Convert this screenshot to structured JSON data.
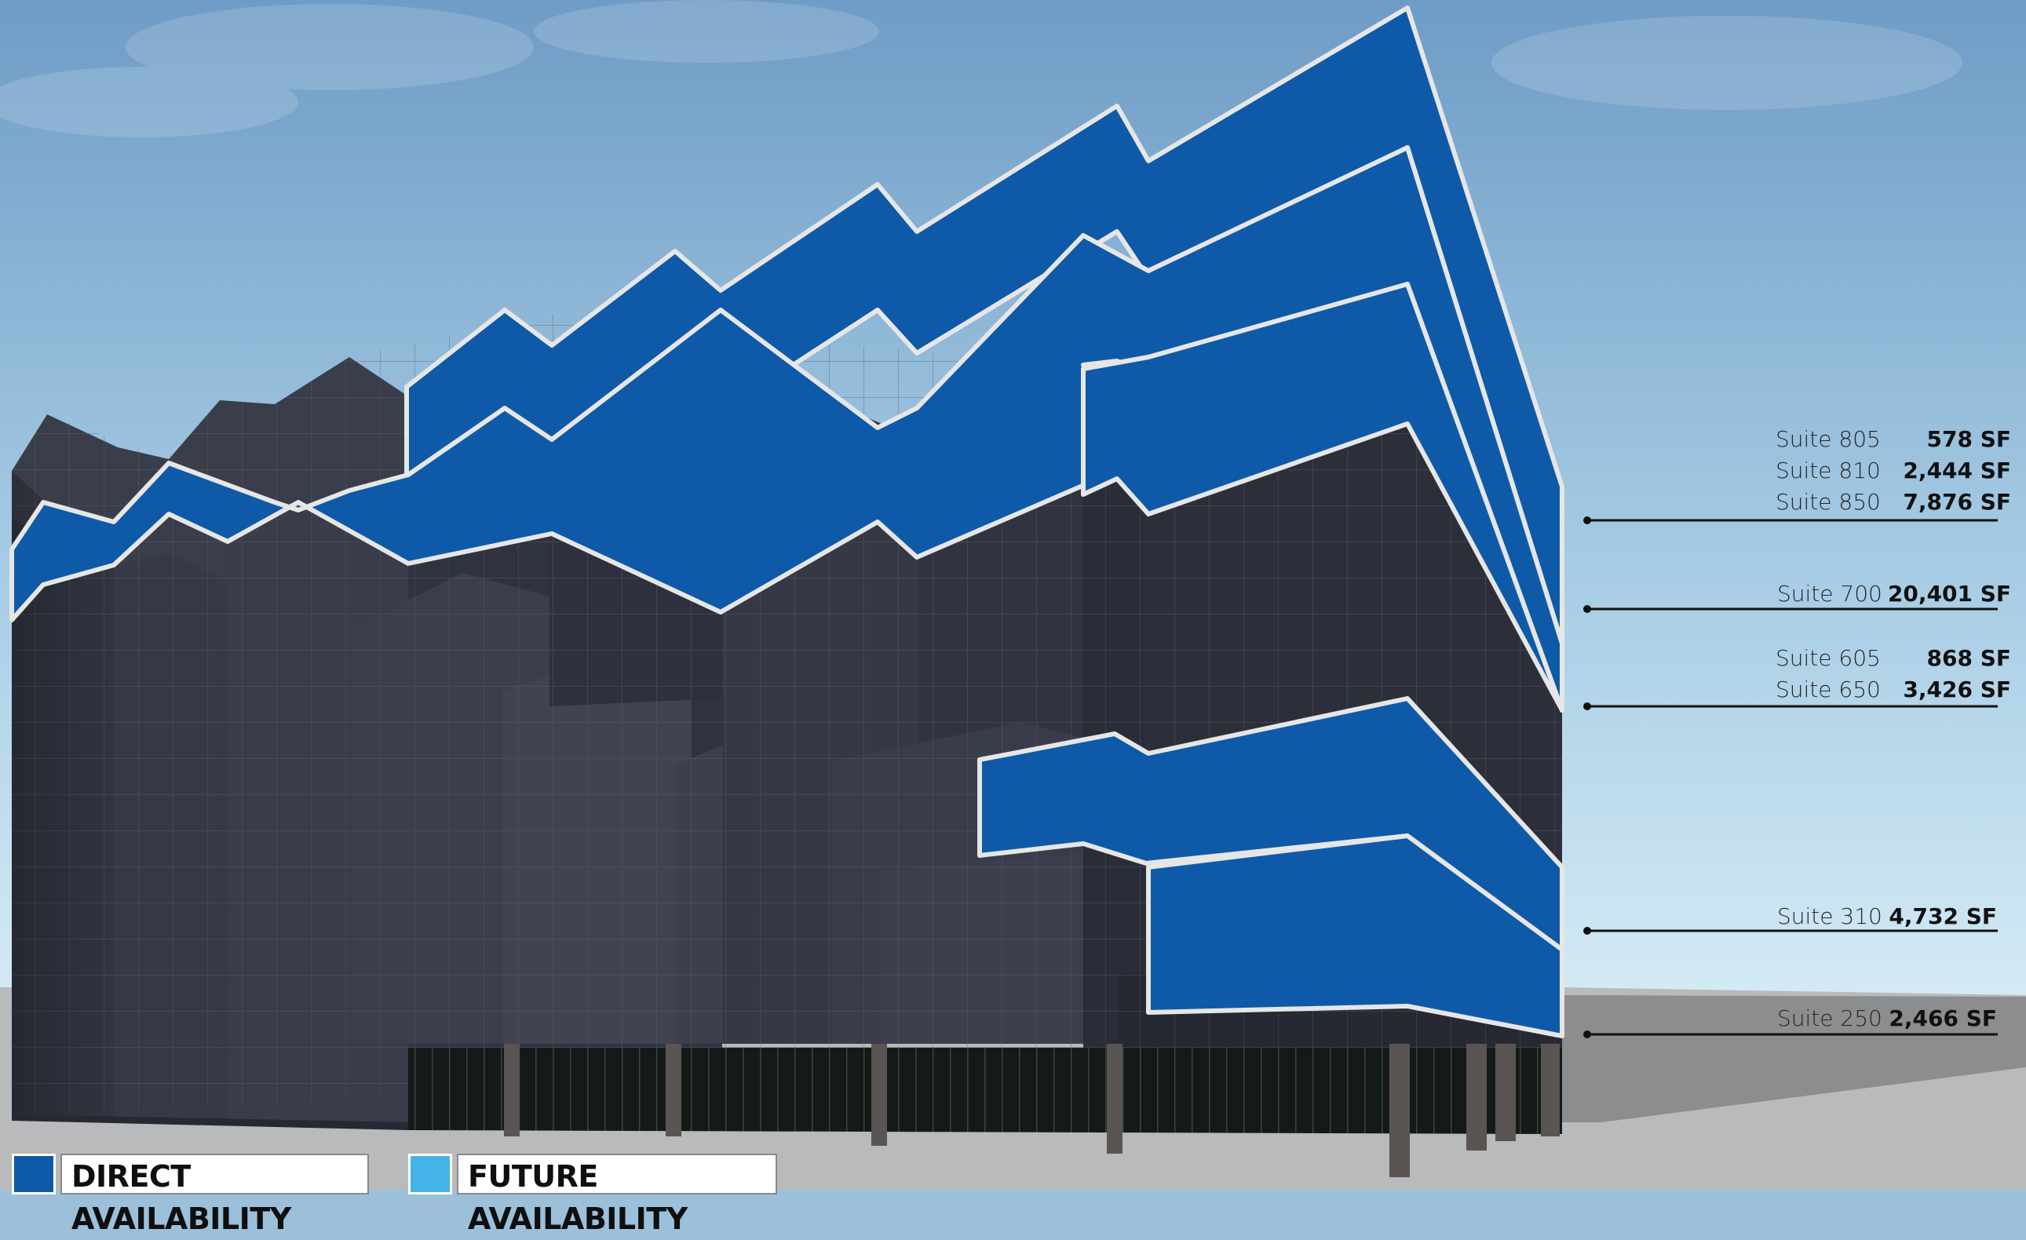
{
  "colors": {
    "direct": "#0f5aa8",
    "future": "#44b4e6",
    "building": "#2f333f",
    "sky_top": "#6f9cc6",
    "sky_bottom": "#d6ecf6",
    "ground": "#b9babb"
  },
  "suites": [
    {
      "name": "Suite 805",
      "sf": "578 SF"
    },
    {
      "name": "Suite 810",
      "sf": "2,444 SF"
    },
    {
      "name": "Suite 850",
      "sf": "7,876 SF"
    },
    {
      "name": "Suite 700",
      "sf": "20,401 SF"
    },
    {
      "name": "Suite 605",
      "sf": "868 SF"
    },
    {
      "name": "Suite 650",
      "sf": "3,426 SF"
    },
    {
      "name": "Suite 310",
      "sf": "4,732 SF"
    },
    {
      "name": "Suite 250",
      "sf": "2,466 SF"
    }
  ],
  "legend": {
    "direct_label": "DIRECT AVAILABILITY",
    "future_label": "FUTURE AVAILABILITY"
  }
}
